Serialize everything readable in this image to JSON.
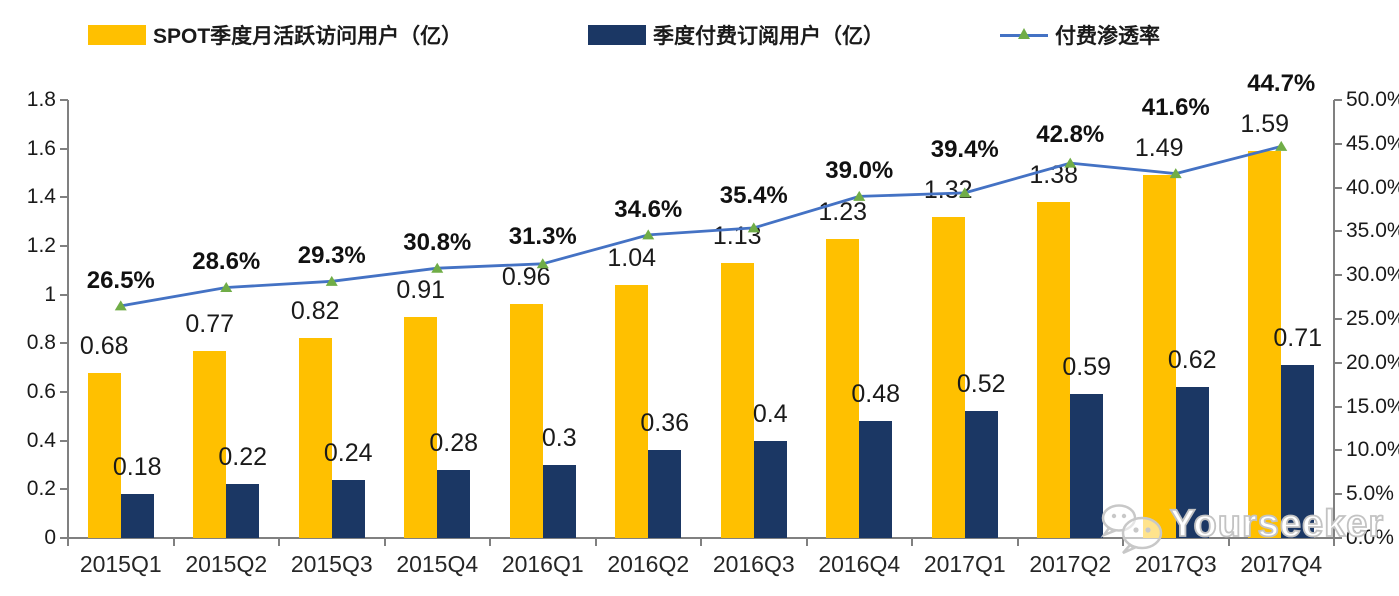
{
  "watermark": {
    "icon": "wechat-icon",
    "text": "Yourseeker"
  },
  "chart_data": {
    "type": "bar+line",
    "title": "",
    "legend_position": "top",
    "grid": false,
    "axis_color": "#808080",
    "text_color": "#1a1a1a",
    "categories": [
      "2015Q1",
      "2015Q2",
      "2015Q3",
      "2015Q4",
      "2016Q1",
      "2016Q2",
      "2016Q3",
      "2016Q4",
      "2017Q1",
      "2017Q2",
      "2017Q3",
      "2017Q4"
    ],
    "series": [
      {
        "name": "SPOT季度月活跃访问用户（亿）",
        "type": "bar",
        "axis": "left",
        "color": "#FFC000",
        "values": [
          0.68,
          0.77,
          0.82,
          0.91,
          0.96,
          1.04,
          1.13,
          1.23,
          1.32,
          1.38,
          1.49,
          1.59
        ],
        "labels": [
          "0.68",
          "0.77",
          "0.82",
          "0.91",
          "0.96",
          "1.04",
          "1.13",
          "1.23",
          "1.32",
          "1.38",
          "1.49",
          "1.59"
        ]
      },
      {
        "name": "季度付费订阅用户（亿）",
        "type": "bar",
        "axis": "left",
        "color": "#1B3764",
        "values": [
          0.18,
          0.22,
          0.24,
          0.28,
          0.3,
          0.36,
          0.4,
          0.48,
          0.52,
          0.59,
          0.62,
          0.71
        ],
        "labels": [
          "0.18",
          "0.22",
          "0.24",
          "0.28",
          "0.3",
          "0.36",
          "0.4",
          "0.48",
          "0.52",
          "0.59",
          "0.62",
          "0.71"
        ]
      },
      {
        "name": "付费渗透率",
        "type": "line",
        "axis": "right",
        "color": "#4472C4",
        "marker": "triangle",
        "marker_color": "#70AD47",
        "values": [
          26.5,
          28.6,
          29.3,
          30.8,
          31.3,
          34.6,
          35.4,
          39.0,
          39.4,
          42.8,
          41.6,
          44.7
        ],
        "labels": [
          "26.5%",
          "28.6%",
          "29.3%",
          "30.8%",
          "31.3%",
          "34.6%",
          "35.4%",
          "39.0%",
          "39.4%",
          "42.8%",
          "41.6%",
          "44.7%"
        ]
      }
    ],
    "left_axis": {
      "min": 0,
      "max": 1.8,
      "step": 0.2,
      "ticks": [
        "0",
        "0.2",
        "0.4",
        "0.6",
        "0.8",
        "1",
        "1.2",
        "1.4",
        "1.6",
        "1.8"
      ]
    },
    "right_axis": {
      "min": 0,
      "max": 50,
      "step": 5,
      "ticks": [
        "0.0%",
        "5.0%",
        "10.0%",
        "15.0%",
        "20.0%",
        "25.0%",
        "30.0%",
        "35.0%",
        "40.0%",
        "45.0%",
        "50.0%"
      ]
    }
  }
}
